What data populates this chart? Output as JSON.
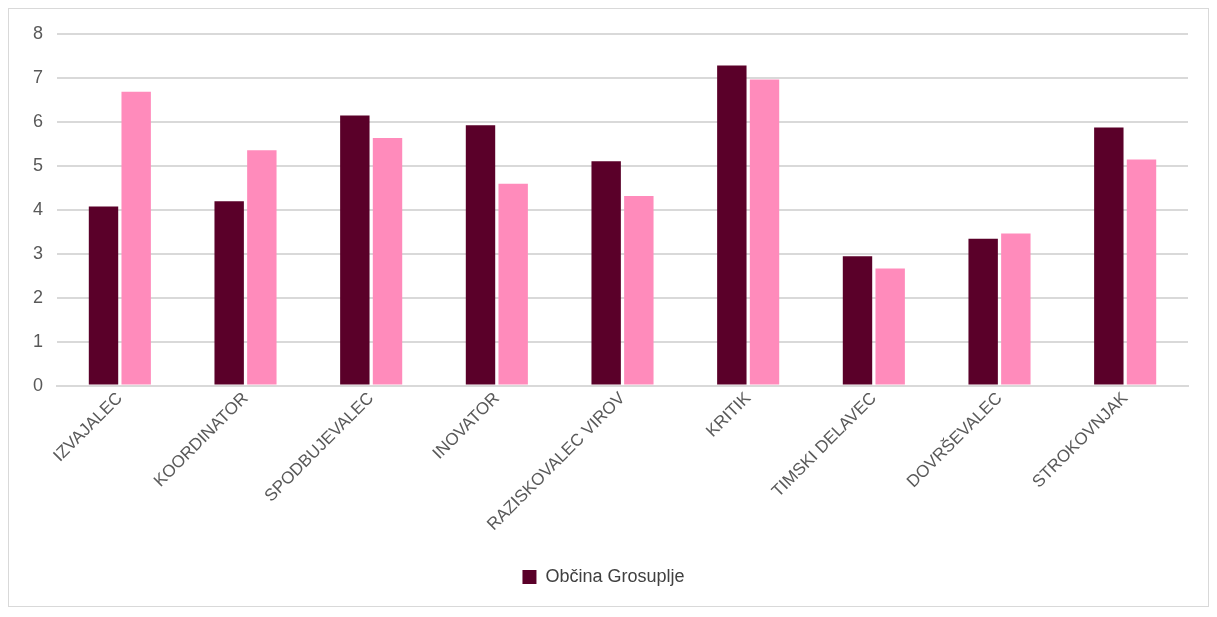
{
  "chart_data": {
    "type": "bar",
    "categories": [
      "IZVAJALEC",
      "KOORDINATOR",
      "SPODBUJEVALEC",
      "INOVATOR",
      "RAZISKOVALEC VIROV",
      "KRITIK",
      "TIMSKI DELAVEC",
      "DOVRŠEVALEC",
      "STROKOVNJAK"
    ],
    "series": [
      {
        "name": "Občina Grosuplje",
        "color": "#5a0029",
        "values": [
          4.07,
          4.19,
          6.14,
          5.92,
          5.1,
          7.28,
          2.94,
          3.34,
          5.87
        ]
      },
      {
        "color": "#ff8bbb",
        "values": [
          6.68,
          5.35,
          5.63,
          4.59,
          4.31,
          6.96,
          2.66,
          3.46,
          5.14
        ]
      }
    ],
    "ylim": [
      0,
      8
    ],
    "yticks": [
      0,
      1,
      2,
      3,
      4,
      5,
      6,
      7,
      8
    ],
    "grid": "y",
    "legend": "bottom"
  }
}
